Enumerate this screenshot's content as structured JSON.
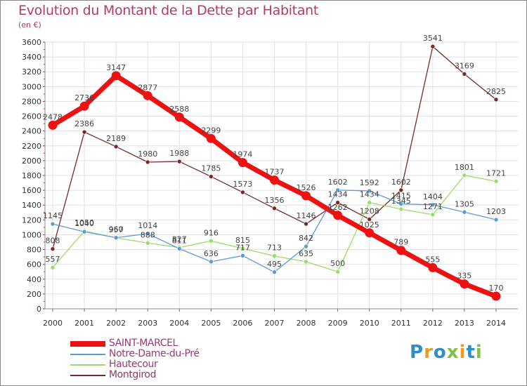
{
  "chart_data": {
    "type": "line",
    "title": "Evolution du Montant de la Dette par Habitant",
    "subtitle": "(en €)",
    "x": [
      "2000",
      "2001",
      "2002",
      "2003",
      "2004",
      "2005",
      "2006",
      "2007",
      "2008",
      "2009",
      "2010",
      "2011",
      "2012",
      "2013",
      "2014"
    ],
    "yticks": [
      0,
      200,
      400,
      600,
      800,
      1000,
      1200,
      1400,
      1600,
      1800,
      2000,
      2200,
      2400,
      2600,
      2800,
      3000,
      3200,
      3400,
      3600
    ],
    "ylim": [
      0,
      3600
    ],
    "grid": true,
    "legend_position": "bottom-left",
    "series": [
      {
        "name": "SAINT-MARCEL",
        "color": "#ee1111",
        "values": [
          2478,
          2736,
          3147,
          2877,
          2588,
          2299,
          1974,
          1737,
          1526,
          1262,
          1025,
          789,
          555,
          335,
          170
        ]
      },
      {
        "name": "Notre-Dame-du-Pré",
        "color": "#5b9bd5",
        "values": [
          1145,
          1040,
          960,
          1014,
          811,
          636,
          717,
          495,
          842,
          1602,
          1592,
          1415,
          1404,
          1305,
          1203
        ]
      },
      {
        "name": "Hautecour",
        "color": "#99dd66",
        "values": [
          557,
          1050,
          957,
          888,
          827,
          916,
          815,
          713,
          635,
          500,
          1434,
          1345,
          1271,
          1801,
          1721
        ]
      },
      {
        "name": "Montgirod",
        "color": "#7a2828",
        "values": [
          808,
          2386,
          2189,
          1980,
          1988,
          1785,
          1573,
          1356,
          1146,
          1434,
          1208,
          1602,
          3541,
          3169,
          2825
        ]
      }
    ]
  },
  "logo": {
    "text": "Proxiti",
    "letters": [
      {
        "ch": "P",
        "color": "#2e8ec8"
      },
      {
        "ch": "r",
        "color": "#f29a1a"
      },
      {
        "ch": "o",
        "color": "#2e8ec8"
      },
      {
        "ch": "x",
        "color": "#7dc242"
      },
      {
        "ch": "i",
        "color": "#f29a1a"
      },
      {
        "ch": "t",
        "color": "#2e8ec8"
      },
      {
        "ch": "i",
        "color": "#7dc242"
      }
    ]
  }
}
